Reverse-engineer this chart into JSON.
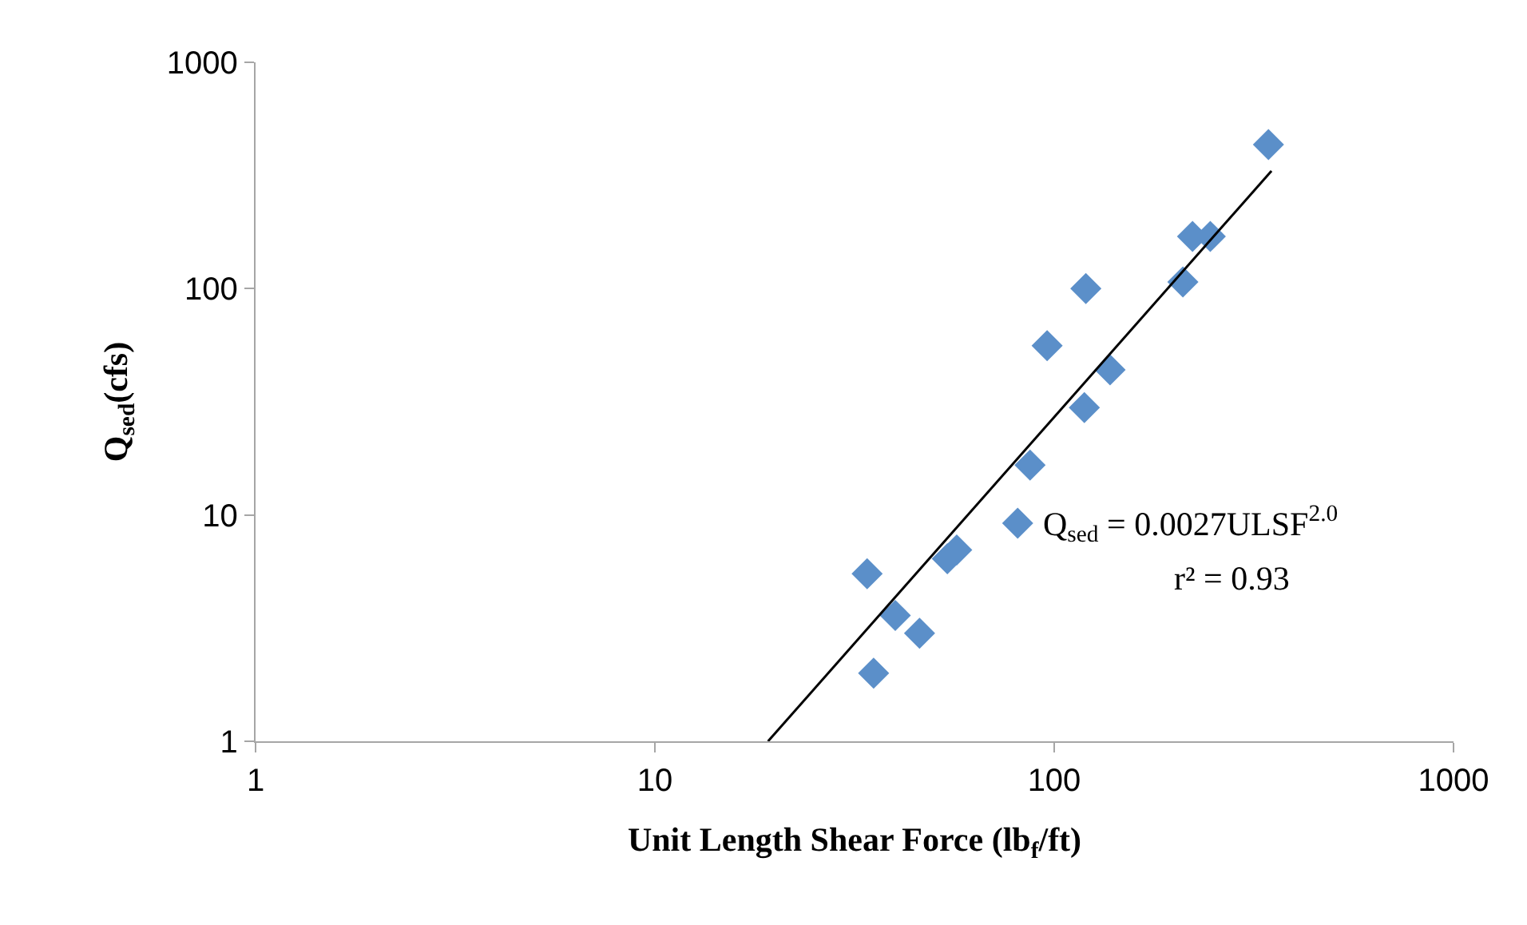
{
  "chart_data": {
    "type": "scatter",
    "xlabel": "Unit Length Shear Force (lb$_{f}$/ft)",
    "ylabel": "Q$_{sed}$(cfs)",
    "log": "xy",
    "xlim": [
      1,
      1000
    ],
    "ylim": [
      1,
      1000
    ],
    "xticks": [
      1,
      10,
      100,
      1000
    ],
    "yticks": [
      1,
      10,
      100,
      1000
    ],
    "grid": false,
    "marker": "diamond",
    "series": [
      {
        "color": "#5b8fc9",
        "x": [
          34,
          35.3,
          40,
          46,
          54,
          57,
          81,
          87,
          119,
          138,
          96,
          120,
          210,
          222,
          246,
          344
        ],
        "values": [
          5.5,
          2.0,
          3.6,
          3.0,
          6.4,
          7.0,
          9.2,
          16.6,
          29.8,
          43.8,
          56,
          100,
          107,
          170,
          170,
          433
        ]
      },
      {
        "type": "line",
        "color": "#000000",
        "marker": "none",
        "line_style": "solid",
        "x": [
          19.2,
          350
        ],
        "values": [
          1,
          331
        ]
      }
    ],
    "annotations": [
      "Q$_{sed}$ = 0.0027ULSF$^{2.0}$",
      "r² = 0.93"
    ]
  }
}
